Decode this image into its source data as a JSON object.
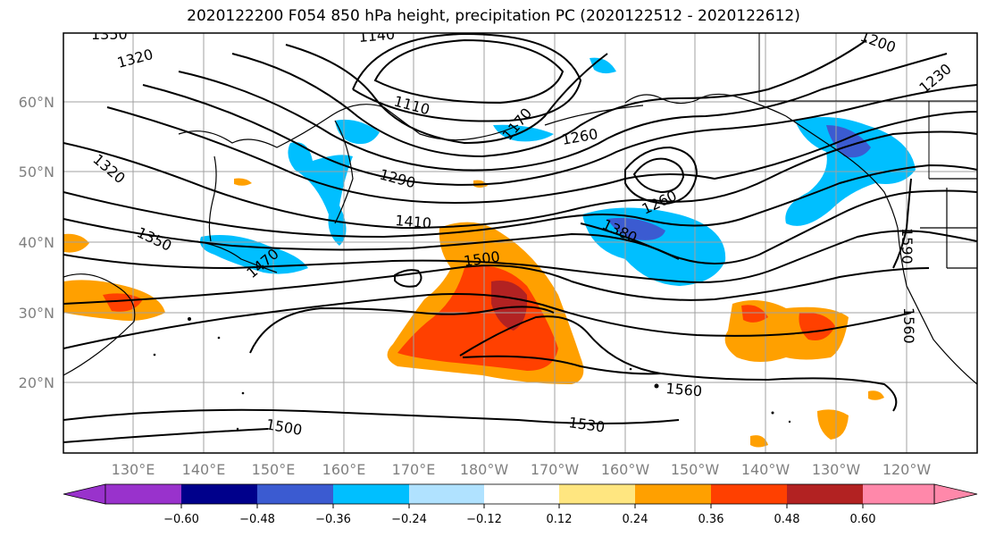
{
  "title": "2020122200 F054 850 hPa height, precipitation PC (2020122512 - 2020122612)",
  "map": {
    "lat_labels": [
      "60°N",
      "50°N",
      "40°N",
      "30°N",
      "20°N"
    ],
    "lon_labels": [
      "130°E",
      "140°E",
      "150°E",
      "160°E",
      "170°E",
      "180°W",
      "170°W",
      "160°W",
      "150°W",
      "140°W",
      "130°W",
      "120°W"
    ],
    "height_contour_labels": [
      "1350",
      "1320",
      "1140",
      "1110",
      "1170",
      "1260",
      "1200",
      "1230",
      "1320",
      "1290",
      "1410",
      "1350",
      "1470",
      "1500",
      "1380",
      "1260",
      "1590",
      "1560",
      "1560",
      "1500",
      "1530"
    ],
    "colors": {
      "coastline": "#000000",
      "contour": "#000000",
      "grid": "#a0a0a0",
      "shading_negative": "#00bfff",
      "shading_negative_strong": "#3b5bd1",
      "shading_positive_light": "#ffe680",
      "shading_positive": "#ffa000",
      "shading_positive_strong": "#ff4000",
      "shading_positive_max": "#b22222"
    }
  },
  "colorbar": {
    "colors": [
      "#9932cc",
      "#00008b",
      "#3b5bd1",
      "#00bfff",
      "#b0e2ff",
      "#ffffff",
      "#ffe680",
      "#ffa000",
      "#ff4000",
      "#b22222",
      "#ff88aa"
    ],
    "tick_labels": [
      "−0.60",
      "−0.48",
      "−0.36",
      "−0.24",
      "−0.12",
      "0.12",
      "0.24",
      "0.36",
      "0.48",
      "0.60"
    ]
  }
}
